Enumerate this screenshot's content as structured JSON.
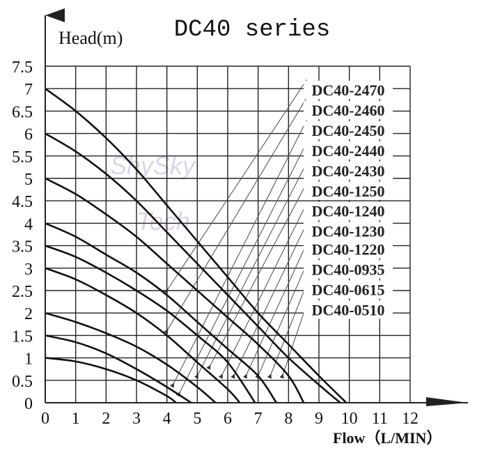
{
  "chart_data": {
    "type": "line",
    "title": "DC40 series",
    "ylabel": "Head(m)",
    "xlabel": "Flow（L/MIN）",
    "xlim": [
      0,
      12
    ],
    "ylim": [
      0,
      7.5
    ],
    "x_ticks": [
      "0",
      "1",
      "2",
      "3",
      "4",
      "5",
      "6",
      "7",
      "8",
      "9",
      "10",
      "11",
      "12"
    ],
    "y_ticks": [
      "0",
      "0.5",
      "1",
      "1.5",
      "2",
      "2.5",
      "3",
      "3.5",
      "4",
      "4.5",
      "5",
      "5.5",
      "6",
      "6.5",
      "7",
      "7.5"
    ],
    "watermark": [
      "ShySky",
      "Tech"
    ],
    "series": [
      {
        "name": "DC40-2470",
        "label_y": 6.85,
        "points": [
          [
            0,
            7.0
          ],
          [
            1,
            6.5
          ],
          [
            2,
            5.9
          ],
          [
            3,
            5.2
          ],
          [
            4,
            4.4
          ],
          [
            5,
            3.6
          ],
          [
            6,
            2.8
          ],
          [
            7,
            2.0
          ],
          [
            8,
            1.3
          ],
          [
            9,
            0.6
          ],
          [
            9.9,
            0.0
          ]
        ],
        "pointer": [
          [
            4.0,
            2.5
          ],
          [
            8.6,
            7.2
          ]
        ]
      },
      {
        "name": "DC40-2460",
        "label_y": 6.4,
        "points": [
          [
            0,
            6.0
          ],
          [
            1,
            5.6
          ],
          [
            2,
            5.1
          ],
          [
            3,
            4.5
          ],
          [
            4,
            3.8
          ],
          [
            5,
            3.1
          ],
          [
            6,
            2.4
          ],
          [
            7,
            1.7
          ],
          [
            8,
            1.0
          ],
          [
            9,
            0.4
          ],
          [
            9.7,
            0.0
          ]
        ],
        "pointer": [
          [
            4.0,
            1.6
          ],
          [
            8.6,
            6.8
          ]
        ]
      },
      {
        "name": "DC40-2450",
        "label_y": 5.95,
        "points": [
          [
            0,
            5.0
          ],
          [
            1,
            4.65
          ],
          [
            2,
            4.2
          ],
          [
            3,
            3.7
          ],
          [
            4,
            3.1
          ],
          [
            5,
            2.5
          ],
          [
            6,
            1.9
          ],
          [
            7,
            1.3
          ],
          [
            8,
            0.6
          ],
          [
            8.5,
            0.0
          ]
        ],
        "pointer": [
          [
            4.2,
            0.4
          ],
          [
            8.6,
            6.3
          ]
        ]
      },
      {
        "name": "DC40-2440",
        "label_y": 5.5,
        "points": [
          [
            0,
            4.0
          ],
          [
            1,
            3.7
          ],
          [
            2,
            3.3
          ],
          [
            3,
            2.9
          ],
          [
            4,
            2.4
          ],
          [
            5,
            1.8
          ],
          [
            6,
            1.2
          ],
          [
            7,
            0.6
          ],
          [
            7.6,
            0.0
          ]
        ],
        "pointer": [
          [
            4.4,
            0.2
          ],
          [
            8.6,
            5.8
          ]
        ]
      },
      {
        "name": "DC40-2430",
        "label_y": 5.05,
        "points": [
          [
            0,
            3.5
          ],
          [
            1,
            3.25
          ],
          [
            2,
            2.9
          ],
          [
            3,
            2.5
          ],
          [
            4,
            2.05
          ],
          [
            5,
            1.5
          ],
          [
            6,
            0.9
          ],
          [
            6.9,
            0.0
          ]
        ],
        "pointer": [
          [
            5.0,
            0.6
          ],
          [
            8.6,
            5.35
          ]
        ]
      },
      {
        "name": "DC40-1250",
        "label_y": 4.6,
        "points": [
          [
            0,
            3.0
          ],
          [
            1,
            2.75
          ],
          [
            2,
            2.4
          ],
          [
            3,
            2.0
          ],
          [
            4,
            1.5
          ],
          [
            5,
            0.9
          ],
          [
            6,
            0.3
          ],
          [
            6.4,
            0.0
          ]
        ],
        "pointer": [
          [
            5.4,
            0.8
          ],
          [
            8.6,
            4.9
          ]
        ]
      },
      {
        "name": "DC40-1240",
        "label_y": 4.15,
        "points": [
          [
            0,
            2.0
          ],
          [
            1,
            1.8
          ],
          [
            2,
            1.55
          ],
          [
            3,
            1.25
          ],
          [
            4,
            0.85
          ],
          [
            5,
            0.35
          ],
          [
            5.6,
            0.0
          ]
        ],
        "pointer": [
          [
            5.8,
            0.6
          ],
          [
            8.6,
            4.45
          ]
        ]
      },
      {
        "name": "DC40-1230",
        "label_y": 3.7,
        "points": [
          [
            0,
            1.5
          ],
          [
            1,
            1.35
          ],
          [
            2,
            1.1
          ],
          [
            3,
            0.75
          ],
          [
            4,
            0.35
          ],
          [
            4.8,
            0.0
          ]
        ],
        "pointer": [
          [
            6.2,
            0.6
          ],
          [
            8.6,
            4.0
          ]
        ]
      },
      {
        "name": "DC40-1220",
        "label_y": 3.3,
        "points": [
          [
            0,
            1.0
          ],
          [
            1,
            0.92
          ],
          [
            2,
            0.75
          ],
          [
            3,
            0.5
          ],
          [
            4,
            0.15
          ],
          [
            4.3,
            0.0
          ]
        ],
        "pointer": [
          [
            6.6,
            0.6
          ],
          [
            8.6,
            3.55
          ]
        ]
      },
      {
        "name": "DC40-0935",
        "label_y": 2.85,
        "points": [],
        "pointer": [
          [
            7.0,
            0.6
          ],
          [
            8.6,
            3.1
          ]
        ]
      },
      {
        "name": "DC40-0615",
        "label_y": 2.4,
        "points": [],
        "pointer": [
          [
            7.4,
            0.6
          ],
          [
            8.6,
            2.65
          ]
        ]
      },
      {
        "name": "DC40-0510",
        "label_y": 1.95,
        "points": [],
        "pointer": [
          [
            7.8,
            0.6
          ],
          [
            8.6,
            2.2
          ]
        ]
      }
    ]
  }
}
